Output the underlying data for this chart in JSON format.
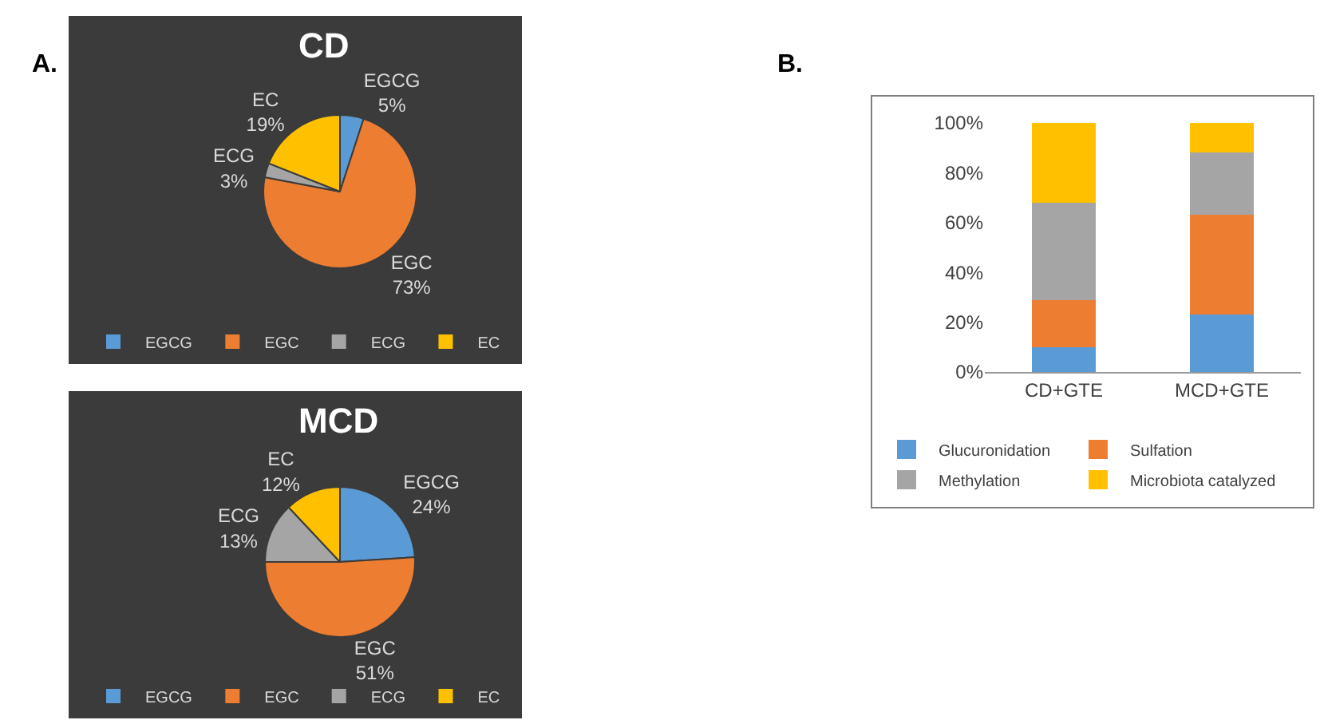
{
  "chart_data": [
    {
      "type": "pie",
      "title": "CD",
      "annotations": [
        "A."
      ],
      "categories": [
        "EGCG",
        "EGC",
        "ECG",
        "EC"
      ],
      "values": [
        5,
        73,
        3,
        19
      ],
      "value_labels": [
        "5%",
        "73%",
        "3%",
        "19%"
      ],
      "colors": [
        "#5b9bd5",
        "#ed7d31",
        "#a5a5a5",
        "#ffc000"
      ],
      "legend": "bottom"
    },
    {
      "type": "pie",
      "title": "MCD",
      "categories": [
        "EGCG",
        "EGC",
        "ECG",
        "EC"
      ],
      "values": [
        24,
        51,
        13,
        12
      ],
      "value_labels": [
        "24%",
        "51%",
        "13%",
        "12%"
      ],
      "colors": [
        "#5b9bd5",
        "#ed7d31",
        "#a5a5a5",
        "#ffc000"
      ],
      "legend": "bottom"
    },
    {
      "type": "bar",
      "stacked": true,
      "annotations": [
        "B."
      ],
      "categories": [
        "CD+GTE",
        "MCD+GTE"
      ],
      "series": [
        {
          "name": "Glucuronidation",
          "color": "#5b9bd5",
          "values": [
            10,
            23
          ]
        },
        {
          "name": "Sulfation",
          "color": "#ed7d31",
          "values": [
            19,
            40
          ]
        },
        {
          "name": "Methylation",
          "color": "#a5a5a5",
          "values": [
            39,
            25
          ]
        },
        {
          "name": "Microbiota catalyzed",
          "color": "#ffc000",
          "values": [
            32,
            12
          ]
        }
      ],
      "ylim": [
        0,
        100
      ],
      "yticks": [
        {
          "value": 0,
          "label": "0%"
        },
        {
          "value": 20,
          "label": "20%"
        },
        {
          "value": 40,
          "label": "40%"
        },
        {
          "value": 60,
          "label": "60%"
        },
        {
          "value": 80,
          "label": "80%"
        },
        {
          "value": 100,
          "label": "100%"
        }
      ],
      "legend": "bottom"
    }
  ]
}
